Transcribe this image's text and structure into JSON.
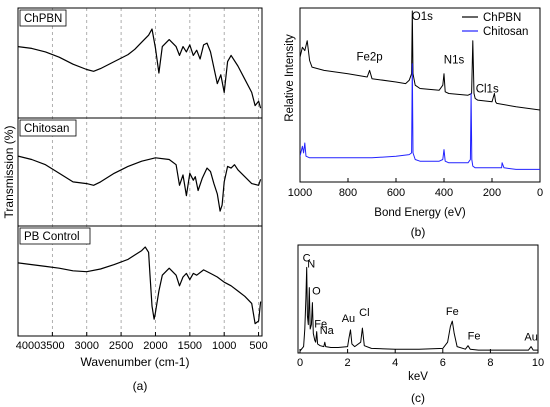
{
  "chart_data": [
    {
      "panel": "(a)",
      "type": "line",
      "xlabel": "Wavenumber (cm-1)",
      "ylabel": "Transmission (%)",
      "xlim": [
        4000,
        450
      ],
      "x_reversed": true,
      "x_ticks": [
        4000,
        3500,
        3000,
        2500,
        2000,
        1500,
        1000,
        500
      ],
      "gridlines": "vertical dashed",
      "subplots": [
        {
          "label": "ChPBN",
          "x": [
            4000,
            3800,
            3600,
            3400,
            3200,
            3000,
            2900,
            2800,
            2600,
            2400,
            2300,
            2200,
            2100,
            2050,
            2000,
            1950,
            1900,
            1800,
            1700,
            1650,
            1600,
            1550,
            1500,
            1450,
            1400,
            1350,
            1300,
            1250,
            1200,
            1150,
            1100,
            1050,
            1000,
            950,
            900,
            800,
            700,
            600,
            550,
            500,
            470
          ],
          "y": [
            0.72,
            0.7,
            0.66,
            0.6,
            0.52,
            0.46,
            0.44,
            0.47,
            0.55,
            0.63,
            0.69,
            0.77,
            0.85,
            0.92,
            0.7,
            0.42,
            0.72,
            0.8,
            0.72,
            0.62,
            0.72,
            0.66,
            0.74,
            0.62,
            0.68,
            0.58,
            0.74,
            0.76,
            0.66,
            0.48,
            0.3,
            0.4,
            0.2,
            0.55,
            0.62,
            0.5,
            0.35,
            0.2,
            0.05,
            0.1,
            0.02
          ]
        },
        {
          "label": "Chitosan",
          "x": [
            4000,
            3800,
            3600,
            3400,
            3200,
            3000,
            2900,
            2800,
            2600,
            2400,
            2200,
            2000,
            1800,
            1700,
            1650,
            1600,
            1550,
            1500,
            1450,
            1420,
            1380,
            1320,
            1250,
            1200,
            1150,
            1100,
            1060,
            1030,
            1000,
            950,
            900,
            850,
            800,
            700,
            600,
            500,
            470
          ],
          "y": [
            0.72,
            0.68,
            0.62,
            0.52,
            0.42,
            0.4,
            0.38,
            0.42,
            0.52,
            0.6,
            0.66,
            0.7,
            0.68,
            0.62,
            0.38,
            0.5,
            0.26,
            0.52,
            0.44,
            0.48,
            0.32,
            0.46,
            0.58,
            0.54,
            0.4,
            0.28,
            0.08,
            0.15,
            0.42,
            0.6,
            0.58,
            0.62,
            0.56,
            0.48,
            0.4,
            0.38,
            0.45
          ]
        },
        {
          "label": "PB Control",
          "x": [
            4000,
            3800,
            3600,
            3400,
            3200,
            3000,
            2800,
            2600,
            2400,
            2300,
            2200,
            2150,
            2100,
            2080,
            2050,
            2020,
            2000,
            1950,
            1900,
            1800,
            1700,
            1650,
            1600,
            1550,
            1500,
            1450,
            1400,
            1300,
            1200,
            1100,
            1000,
            900,
            800,
            700,
            600,
            550,
            500,
            470
          ],
          "y": [
            0.74,
            0.72,
            0.7,
            0.68,
            0.65,
            0.64,
            0.67,
            0.72,
            0.78,
            0.83,
            0.88,
            0.92,
            0.86,
            0.6,
            0.25,
            0.1,
            0.18,
            0.42,
            0.6,
            0.68,
            0.6,
            0.48,
            0.58,
            0.62,
            0.55,
            0.62,
            0.6,
            0.66,
            0.62,
            0.58,
            0.52,
            0.48,
            0.42,
            0.36,
            0.28,
            0.05,
            0.08,
            0.3
          ]
        }
      ]
    },
    {
      "panel": "(b)",
      "type": "line",
      "xlabel": "Bond Energy (eV)",
      "ylabel": "Relative Intensity",
      "xlim": [
        1000,
        0
      ],
      "x_reversed": true,
      "x_ticks": [
        1000,
        800,
        600,
        400,
        200,
        0
      ],
      "legend": "top-right",
      "annotations": [
        {
          "text": "O1s",
          "x": 532
        },
        {
          "text": "Cl1s",
          "x": 270
        },
        {
          "text": "Fe2p",
          "x": 710
        },
        {
          "text": "N1s",
          "x": 400
        }
      ],
      "series": [
        {
          "name": "ChPBN",
          "color": "#000000",
          "x": [
            1000,
            990,
            980,
            970,
            960,
            950,
            900,
            800,
            720,
            710,
            700,
            600,
            560,
            545,
            535,
            532,
            529,
            520,
            500,
            420,
            405,
            400,
            395,
            380,
            300,
            285,
            280,
            275,
            270,
            260,
            200,
            190,
            185,
            180,
            100,
            0
          ],
          "y": [
            0.72,
            0.78,
            0.76,
            0.82,
            0.7,
            0.66,
            0.64,
            0.62,
            0.6,
            0.64,
            0.59,
            0.57,
            0.56,
            0.58,
            0.62,
            1.0,
            0.62,
            0.55,
            0.53,
            0.52,
            0.55,
            0.62,
            0.51,
            0.5,
            0.49,
            0.5,
            0.82,
            0.5,
            0.47,
            0.46,
            0.45,
            0.5,
            0.45,
            0.44,
            0.42,
            0.4
          ]
        },
        {
          "name": "Chitosan",
          "color": "#2222ff",
          "x": [
            1000,
            990,
            985,
            980,
            975,
            960,
            900,
            800,
            700,
            600,
            545,
            535,
            532,
            529,
            520,
            500,
            420,
            405,
            400,
            395,
            380,
            300,
            290,
            287,
            284,
            280,
            270,
            200,
            160,
            158,
            150,
            100,
            0
          ],
          "y": [
            0.12,
            0.18,
            0.14,
            0.2,
            0.12,
            0.11,
            0.11,
            0.11,
            0.11,
            0.12,
            0.13,
            0.14,
            0.68,
            0.14,
            0.1,
            0.09,
            0.09,
            0.1,
            0.16,
            0.09,
            0.08,
            0.08,
            0.1,
            0.5,
            0.1,
            0.06,
            0.05,
            0.05,
            0.05,
            0.08,
            0.05,
            0.04,
            0.04
          ]
        }
      ]
    },
    {
      "panel": "(c)",
      "type": "line",
      "xlabel": "keV",
      "xlim": [
        0,
        10
      ],
      "x_ticks": [
        0,
        2,
        4,
        6,
        8,
        10
      ],
      "annotations": [
        {
          "text": "C",
          "x": 0.28
        },
        {
          "text": "N",
          "x": 0.39
        },
        {
          "text": "O",
          "x": 0.52
        },
        {
          "text": "Fe",
          "x": 0.7
        },
        {
          "text": "Na",
          "x": 1.04
        },
        {
          "text": "Au",
          "x": 2.12
        },
        {
          "text": "Cl",
          "x": 2.62
        },
        {
          "text": "Fe",
          "x": 6.4
        },
        {
          "text": "Fe",
          "x": 7.06
        },
        {
          "text": "Au",
          "x": 9.71
        }
      ],
      "x": [
        0,
        0.15,
        0.2,
        0.25,
        0.28,
        0.31,
        0.35,
        0.39,
        0.43,
        0.48,
        0.52,
        0.56,
        0.62,
        0.66,
        0.7,
        0.74,
        0.85,
        1.0,
        1.04,
        1.08,
        1.3,
        1.6,
        2.0,
        2.06,
        2.12,
        2.18,
        2.3,
        2.55,
        2.62,
        2.7,
        3.0,
        4.0,
        5.0,
        6.0,
        6.2,
        6.32,
        6.4,
        6.48,
        6.6,
        6.95,
        7.06,
        7.15,
        7.5,
        8.0,
        9.0,
        9.6,
        9.71,
        9.8,
        10.0
      ],
      "y": [
        0,
        0.05,
        0.25,
        0.6,
        0.95,
        0.4,
        0.3,
        0.72,
        0.25,
        0.3,
        0.55,
        0.2,
        0.12,
        0.1,
        0.22,
        0.08,
        0.06,
        0.05,
        0.1,
        0.05,
        0.04,
        0.04,
        0.05,
        0.15,
        0.24,
        0.08,
        0.05,
        0.1,
        0.26,
        0.06,
        0.03,
        0.02,
        0.02,
        0.03,
        0.1,
        0.28,
        0.34,
        0.2,
        0.05,
        0.02,
        0.06,
        0.02,
        0.01,
        0.01,
        0.01,
        0.01,
        0.05,
        0.01,
        0.01
      ]
    }
  ]
}
